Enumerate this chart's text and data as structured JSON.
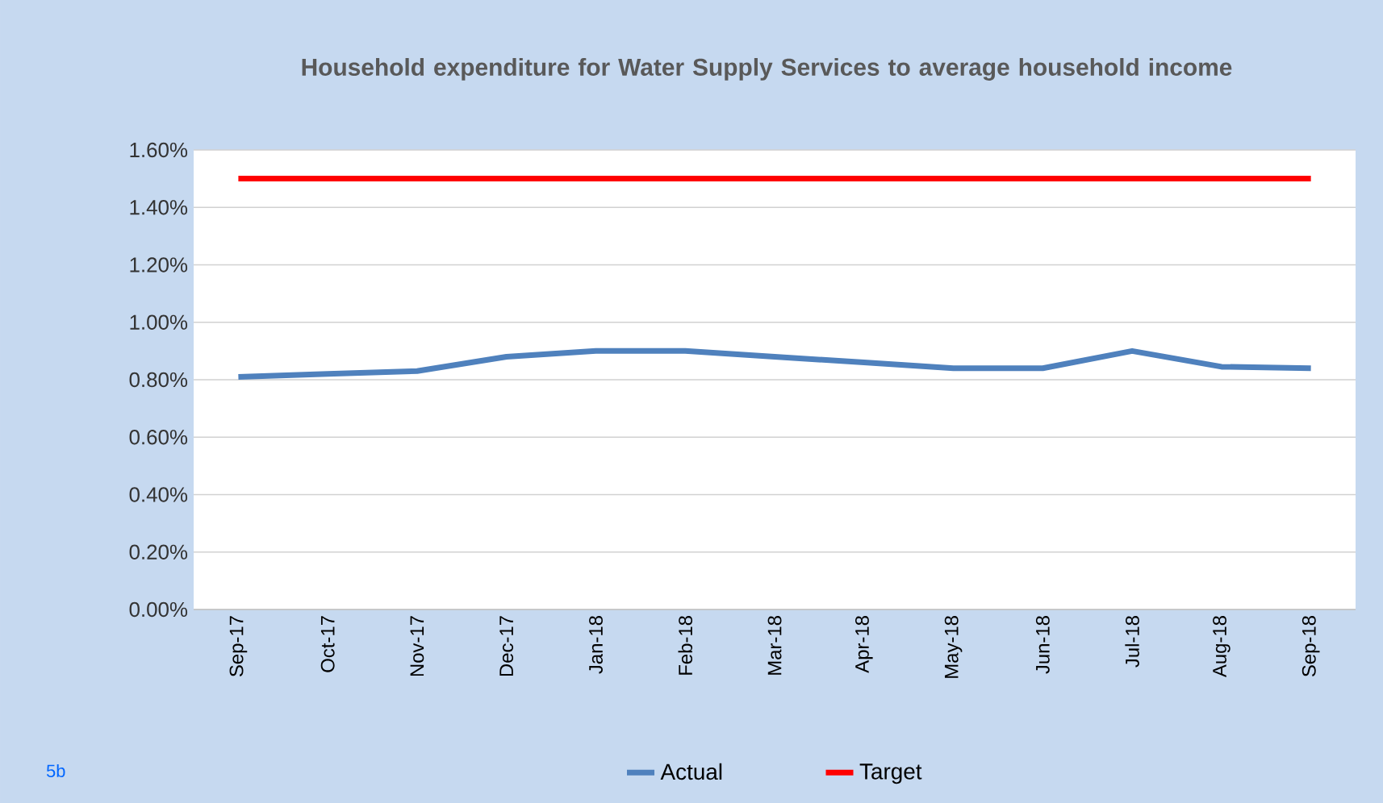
{
  "chart_data": {
    "type": "line",
    "title": "Household expenditure for Water Supply Services to average household income",
    "categories": [
      "Sep-17",
      "Oct-17",
      "Nov-17",
      "Dec-17",
      "Jan-18",
      "Feb-18",
      "Mar-18",
      "Apr-18",
      "May-18",
      "Jun-18",
      "Jul-18",
      "Aug-18",
      "Sep-18"
    ],
    "series": [
      {
        "name": "Actual",
        "color": "#4f81bd",
        "values": [
          0.81,
          0.82,
          0.83,
          0.88,
          0.9,
          0.9,
          0.88,
          0.86,
          0.84,
          0.84,
          0.9,
          0.845,
          0.84
        ]
      },
      {
        "name": "Target",
        "color": "#ff0000",
        "values": [
          1.5,
          1.5,
          1.5,
          1.5,
          1.5,
          1.5,
          1.5,
          1.5,
          1.5,
          1.5,
          1.5,
          1.5,
          1.5
        ]
      }
    ],
    "ylim": [
      0,
      1.6
    ],
    "yticks": [
      {
        "value": 0,
        "label": "0.00%"
      },
      {
        "value": 0.2,
        "label": "0.20%"
      },
      {
        "value": 0.4,
        "label": "0.40%"
      },
      {
        "value": 0.6,
        "label": "0.60%"
      },
      {
        "value": 0.8,
        "label": "0.80%"
      },
      {
        "value": 1.0,
        "label": "1.00%"
      },
      {
        "value": 1.2,
        "label": "1.20%"
      },
      {
        "value": 1.4,
        "label": "1.40%"
      },
      {
        "value": 1.6,
        "label": "1.60%"
      }
    ],
    "grid": "y",
    "legend": "bottom",
    "marker": "none",
    "line_style": "solid",
    "annotations": [
      "5b"
    ]
  }
}
